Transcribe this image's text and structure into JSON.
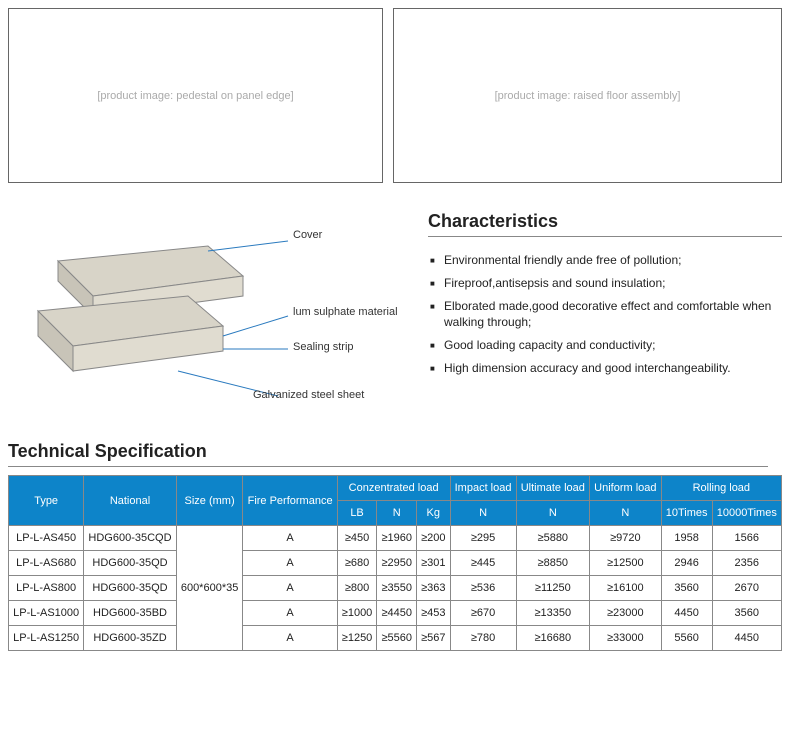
{
  "topImages": {
    "left": "[product image: pedestal on panel edge]",
    "right": "[product image: raised floor assembly]"
  },
  "diagram": {
    "labels": {
      "cover": "Cover",
      "material": "lum sulphate material",
      "strip": "Sealing strip",
      "sheet": "Galvanized steel sheet"
    }
  },
  "characteristics": {
    "title": "Characteristics",
    "items": [
      "Environmental friendly ande free of pollution;",
      "Fireproof,antisepsis and sound insulation;",
      "Elborated made,good decorative effect and comfortable when walking through;",
      "Good loading capacity and conductivity;",
      "High dimension accuracy and good interchangeability."
    ]
  },
  "spec": {
    "title": "Technical Specification",
    "headers": {
      "type": "Type",
      "national": "National",
      "size": "Size\n(mm)",
      "fire": "Fire\nPerformance",
      "conc": "Conzentrated load",
      "lb": "LB",
      "n": "N",
      "kg": "Kg",
      "impact": "Impact load",
      "ultimate": "Ultimate load",
      "uniform": "Uniform load",
      "rolling": "Rolling load",
      "t10": "10Times",
      "t10000": "10000Times"
    },
    "sizeValue": "600*600*35",
    "rows": [
      {
        "type": "LP-L-AS450",
        "nat": "HDG600-35CQD",
        "fire": "A",
        "lb": "≥450",
        "n1": "≥1960",
        "kg": "≥200",
        "imp": "≥295",
        "ult": "≥5880",
        "uni": "≥9720",
        "r10": "1958",
        "r10k": "1566"
      },
      {
        "type": "LP-L-AS680",
        "nat": "HDG600-35QD",
        "fire": "A",
        "lb": "≥680",
        "n1": "≥2950",
        "kg": "≥301",
        "imp": "≥445",
        "ult": "≥8850",
        "uni": "≥12500",
        "r10": "2946",
        "r10k": "2356"
      },
      {
        "type": "LP-L-AS800",
        "nat": "HDG600-35QD",
        "fire": "A",
        "lb": "≥800",
        "n1": "≥3550",
        "kg": "≥363",
        "imp": "≥536",
        "ult": "≥11250",
        "uni": "≥16100",
        "r10": "3560",
        "r10k": "2670"
      },
      {
        "type": "LP-L-AS1000",
        "nat": "HDG600-35BD",
        "fire": "A",
        "lb": "≥1000",
        "n1": "≥4450",
        "kg": "≥453",
        "imp": "≥670",
        "ult": "≥13350",
        "uni": "≥23000",
        "r10": "4450",
        "r10k": "3560"
      },
      {
        "type": "LP-L-AS1250",
        "nat": "HDG600-35ZD",
        "fire": "A",
        "lb": "≥1250",
        "n1": "≥5560",
        "kg": "≥567",
        "imp": "≥780",
        "ult": "≥16680",
        "uni": "≥33000",
        "r10": "5560",
        "r10k": "4450"
      }
    ]
  }
}
